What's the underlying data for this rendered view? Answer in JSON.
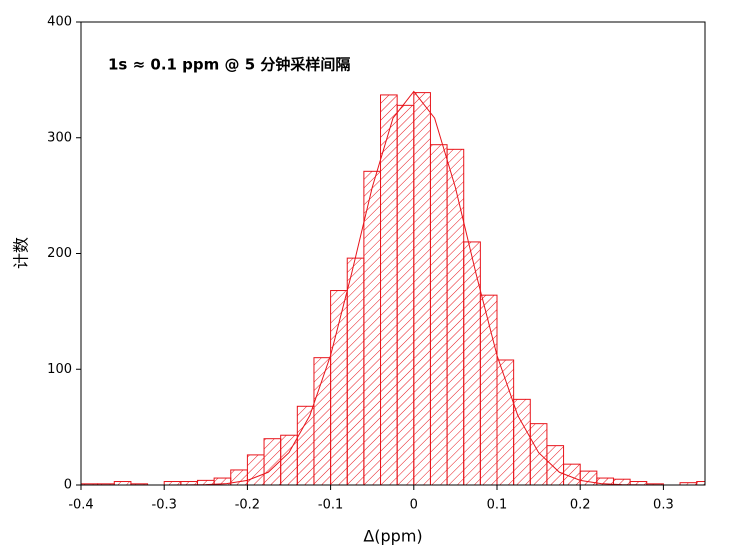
{
  "chart_data": {
    "type": "histogram",
    "title": "1s ≈ 0.1  ppm @ 5 分钟采样间隔",
    "x_label": "Δ(ppm)",
    "y_label": "计数",
    "bins": [
      -0.4,
      -0.38,
      -0.36,
      -0.34,
      -0.32,
      -0.3,
      -0.28,
      -0.26,
      -0.24,
      -0.22,
      -0.2,
      -0.18,
      -0.16,
      -0.14,
      -0.12,
      -0.1,
      -0.08,
      -0.06,
      -0.04,
      -0.02,
      0,
      0.02,
      0.04,
      0.06,
      0.08,
      0.1,
      0.12,
      0.14,
      0.16,
      0.18,
      0.2,
      0.22,
      0.24,
      0.26,
      0.28,
      0.3,
      0.32,
      0.34,
      0.36
    ],
    "values": [
      1,
      1,
      3,
      1,
      0,
      3,
      3,
      4,
      6,
      13,
      26,
      40,
      43,
      68,
      110,
      168,
      196,
      271,
      337,
      328,
      339,
      294,
      290,
      210,
      164,
      108,
      74,
      53,
      34,
      18,
      12,
      6,
      5,
      3,
      1,
      0,
      2,
      3
    ],
    "color": "#e8141b",
    "fit": {
      "x": [
        -0.4,
        -0.375,
        -0.35,
        -0.325,
        -0.3,
        -0.275,
        -0.25,
        -0.225,
        -0.2,
        -0.175,
        -0.15,
        -0.125,
        -0.1,
        -0.075,
        -0.05,
        -0.025,
        0,
        0.025,
        0.05,
        0.075,
        0.1,
        0.125,
        0.15,
        0.175,
        0.2,
        0.225,
        0.25,
        0.275,
        0.3,
        0.325,
        0.35
      ],
      "values": [
        0,
        0,
        0,
        0,
        0,
        0.1,
        0.3,
        1.2,
        4,
        11,
        28,
        60,
        112,
        182,
        257,
        317,
        340,
        317,
        257,
        182,
        112,
        60,
        28,
        11,
        4,
        1.2,
        0.3,
        0.1,
        0,
        0,
        0
      ]
    },
    "xlim": [
      -0.4,
      0.35
    ],
    "xticks": [
      -0.4,
      -0.3,
      -0.2,
      -0.1,
      0,
      0.1,
      0.2,
      0.3
    ],
    "ylim": [
      0,
      400
    ],
    "yticks": [
      0,
      100,
      200,
      300,
      400
    ]
  }
}
